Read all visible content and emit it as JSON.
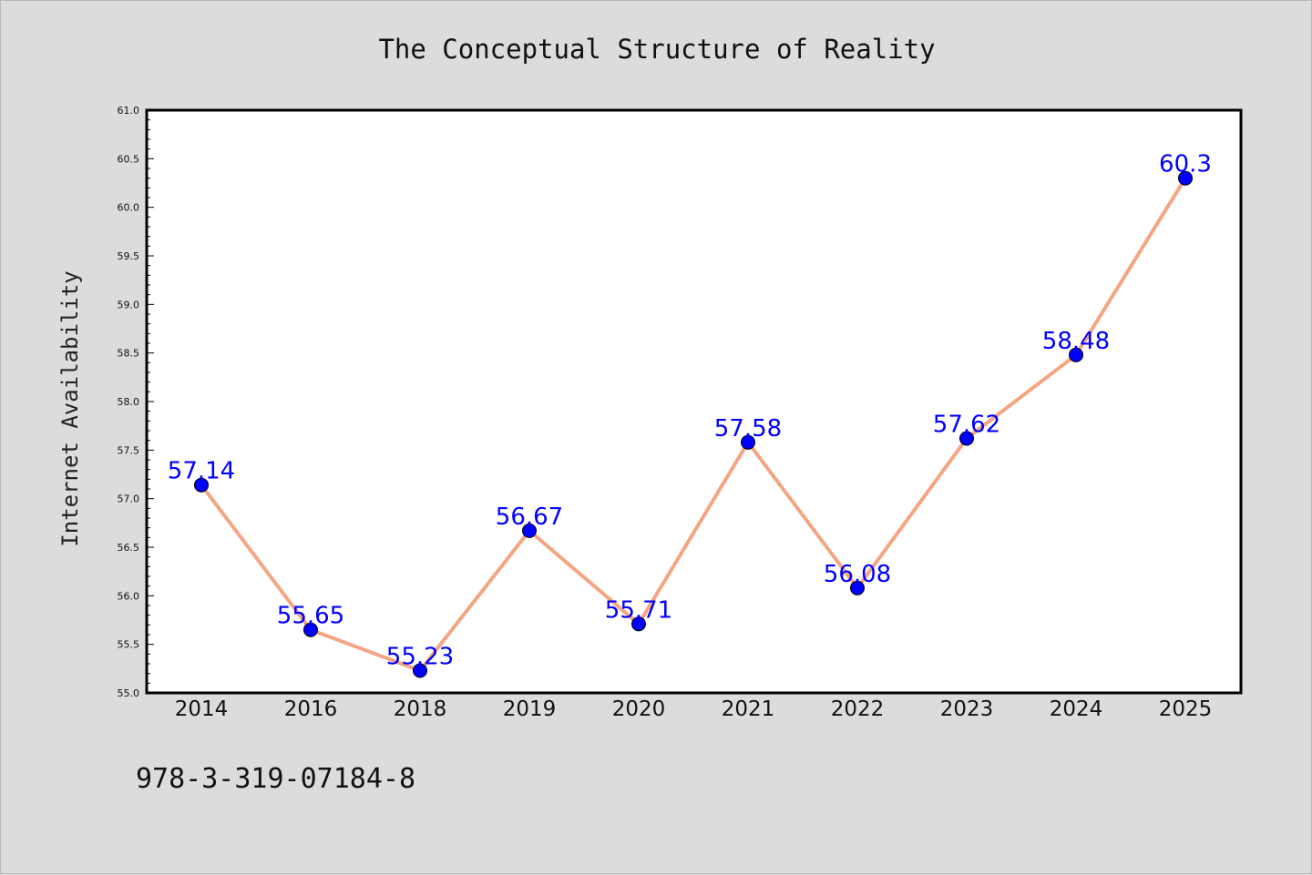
{
  "chart_data": {
    "type": "line",
    "title": "The Conceptual Structure of Reality",
    "xlabel": "",
    "ylabel": "Internet Availability",
    "categories": [
      "2014",
      "2016",
      "2018",
      "2019",
      "2020",
      "2021",
      "2022",
      "2023",
      "2024",
      "2025"
    ],
    "values": [
      57.14,
      55.65,
      55.23,
      56.67,
      55.71,
      57.58,
      56.08,
      57.62,
      58.48,
      60.3
    ],
    "data_labels": [
      "57.14",
      "55.65",
      "55.23",
      "56.67",
      "55.71",
      "57.58",
      "56.08",
      "57.62",
      "58.48",
      "60.3"
    ],
    "ylim": [
      55.0,
      61.0
    ],
    "yticks": [
      "55.0",
      "55.5",
      "56.0",
      "56.5",
      "57.0",
      "57.5",
      "58.0",
      "58.5",
      "59.0",
      "59.5",
      "60.0",
      "60.5",
      "61.0"
    ],
    "grid": false,
    "legend": "none",
    "line_color": "#f4a582",
    "marker_color": "#0000ff",
    "label_color": "#0000ff",
    "plot_background": "#ffffff",
    "figure_background": "#dcdcdc"
  },
  "footer_text": "978-3-319-07184-8"
}
